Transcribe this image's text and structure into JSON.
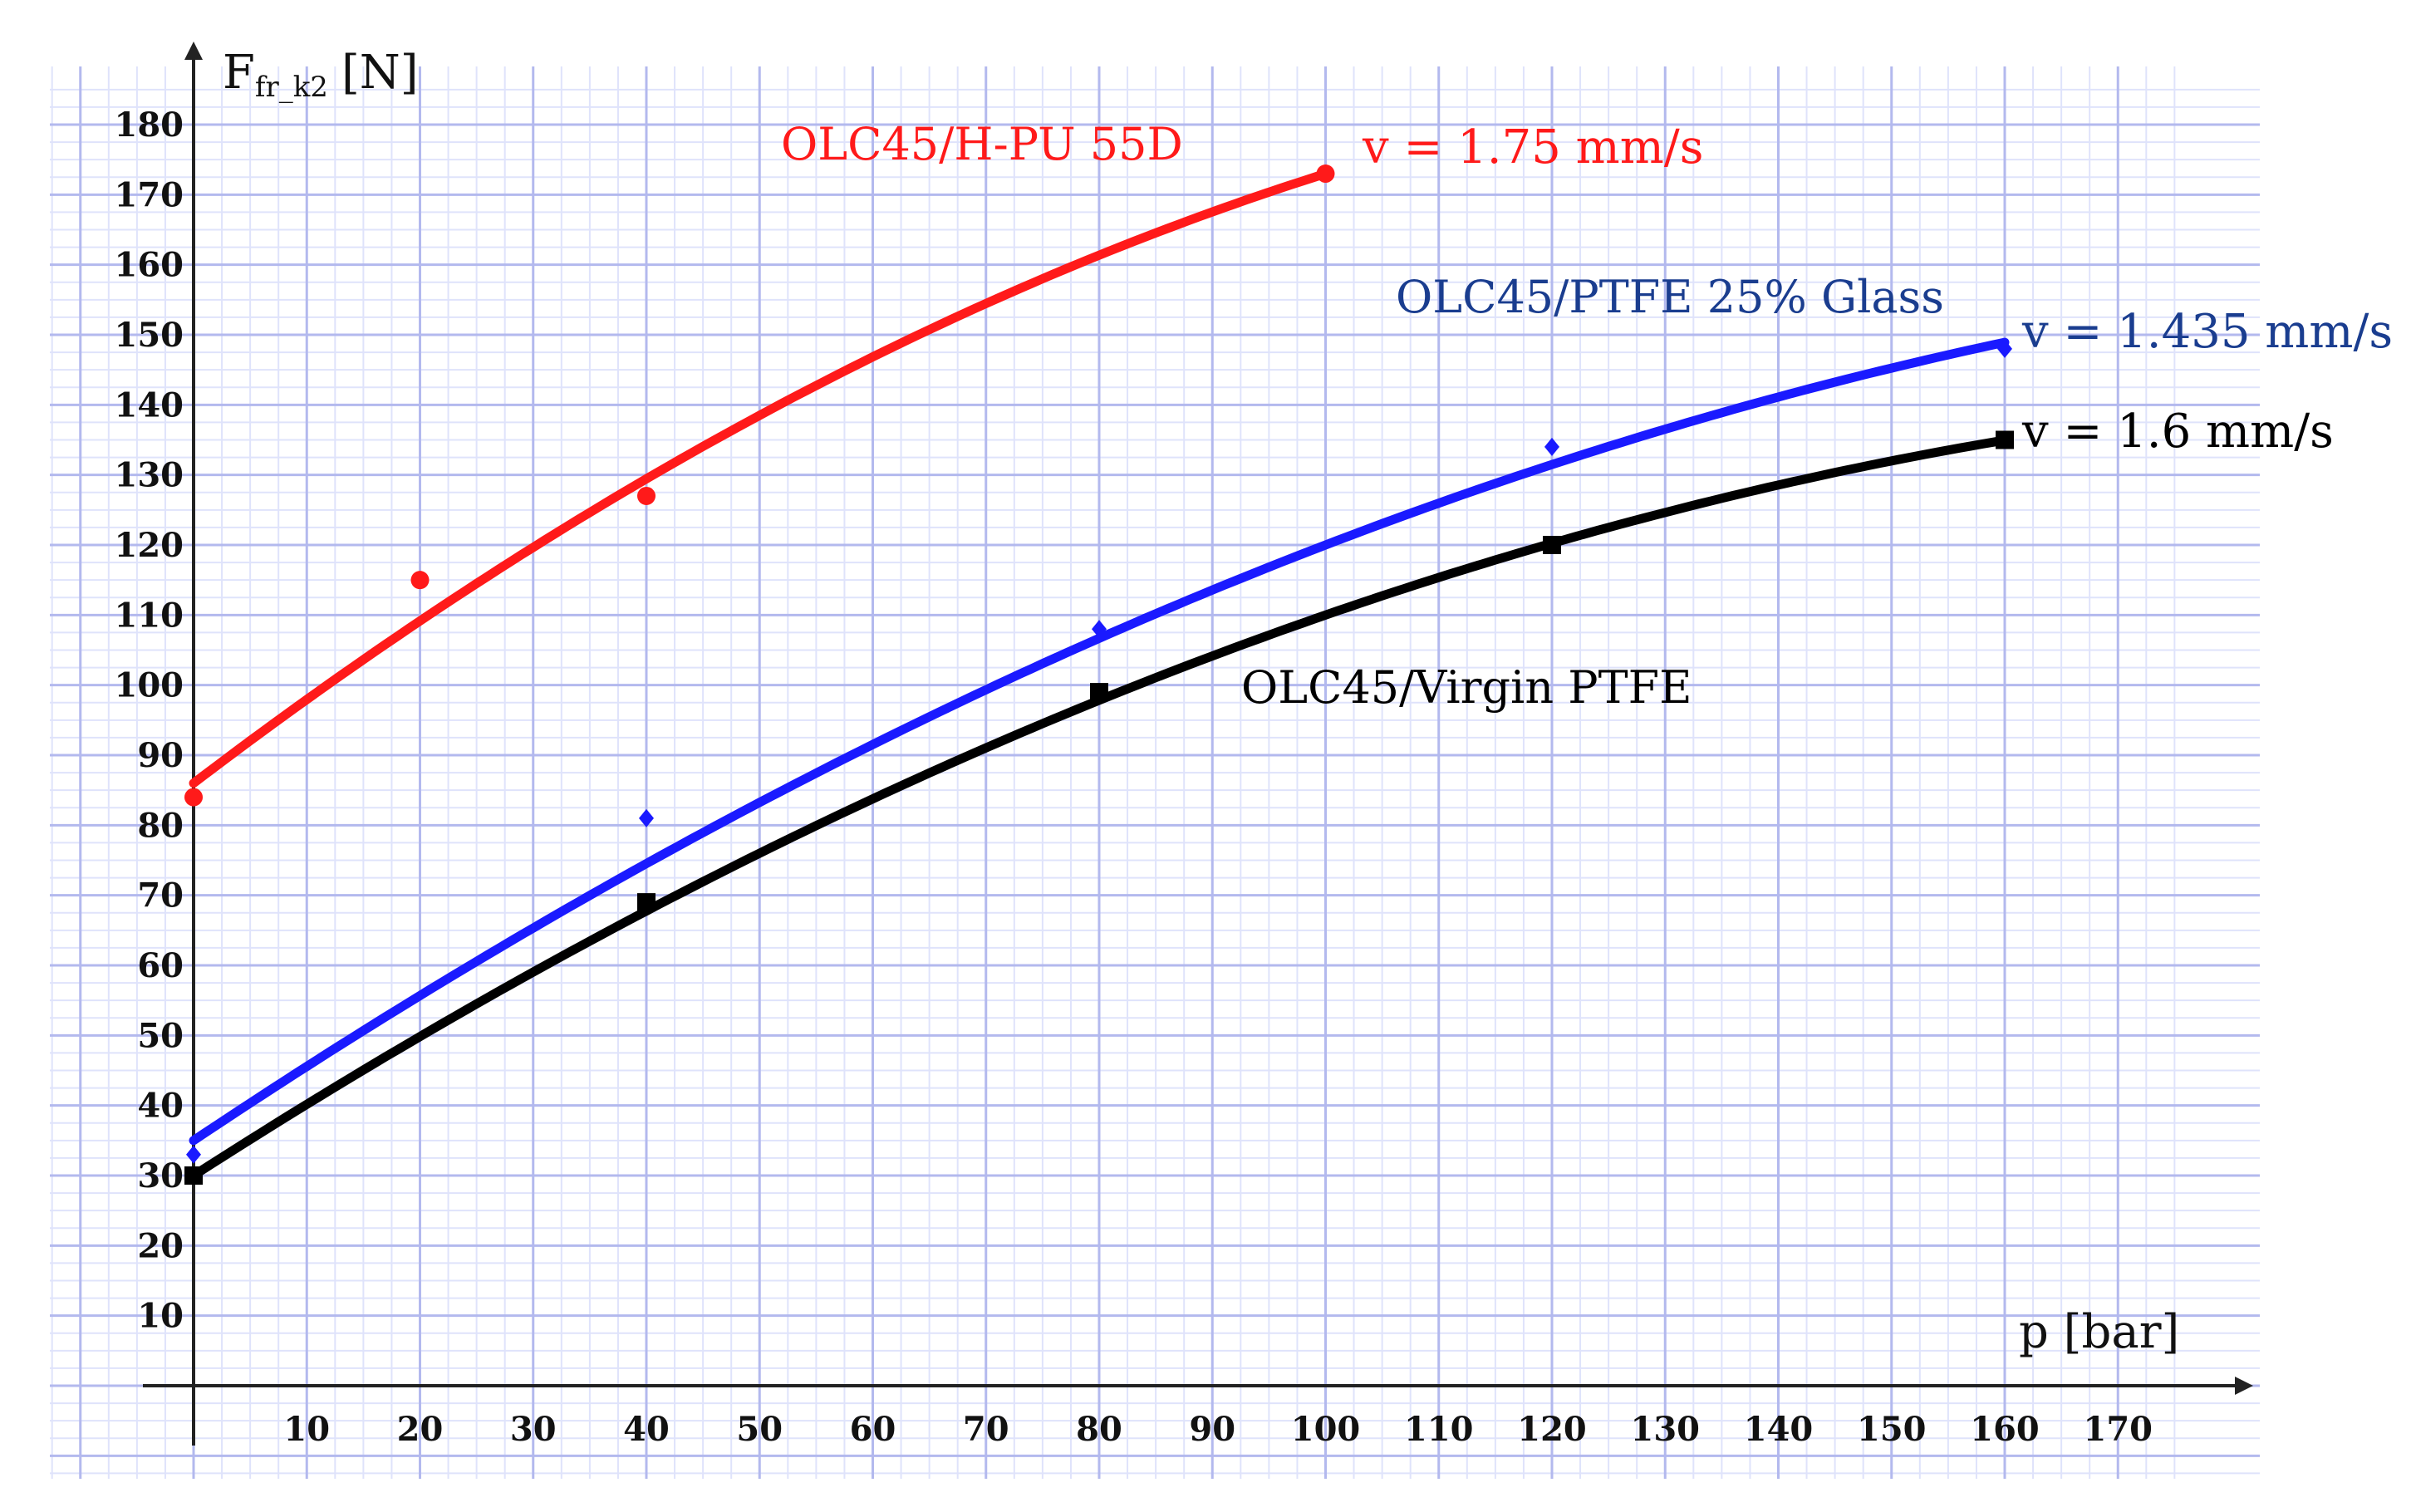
{
  "chart_data": {
    "type": "line",
    "ylabel_main": "F",
    "ylabel_sub": "fr_k2",
    "ylabel_unit": "[N]",
    "xlabel": "p [bar]",
    "xlim": [
      0,
      180
    ],
    "ylim": [
      0,
      185
    ],
    "x_ticks": [
      10,
      20,
      30,
      40,
      50,
      60,
      70,
      80,
      90,
      100,
      110,
      120,
      130,
      140,
      150,
      160,
      170
    ],
    "y_ticks": [
      10,
      20,
      30,
      40,
      50,
      60,
      70,
      80,
      90,
      100,
      110,
      120,
      130,
      140,
      150,
      160,
      170,
      180
    ],
    "grid": true,
    "series": [
      {
        "name": "OLC45/H-PU 55D",
        "label": "OLC45/H-PU 55D",
        "speed_label": "v = 1.75 mm/s",
        "color": "#ff1a1a",
        "marker": "circle",
        "points": [
          {
            "x": 0,
            "y": 84
          },
          {
            "x": 20,
            "y": 115
          },
          {
            "x": 40,
            "y": 127
          },
          {
            "x": 100,
            "y": 173
          }
        ],
        "fit": {
          "a": 86,
          "b": 1.23,
          "c": -0.0036,
          "x_end": 100
        }
      },
      {
        "name": "OLC45/PTFE 25% Glass",
        "label": "OLC45/PTFE 25% Glass",
        "speed_label": "v = 1.435 mm/s",
        "color": "#1a1aff",
        "marker": "diamond",
        "points": [
          {
            "x": 0,
            "y": 33
          },
          {
            "x": 40,
            "y": 81
          },
          {
            "x": 80,
            "y": 108
          },
          {
            "x": 120,
            "y": 134
          },
          {
            "x": 160,
            "y": 148
          }
        ],
        "fit": {
          "a": 35,
          "b": 1.08,
          "c": -0.0023,
          "x_end": 160
        }
      },
      {
        "name": "OLC45/Virgin PTFE",
        "label": "OLC45/Virgin PTFE",
        "speed_label": "v = 1.6 mm/s",
        "color": "#000000",
        "marker": "square",
        "points": [
          {
            "x": 0,
            "y": 30
          },
          {
            "x": 40,
            "y": 69
          },
          {
            "x": 80,
            "y": 99
          },
          {
            "x": 120,
            "y": 120
          },
          {
            "x": 160,
            "y": 135
          }
        ],
        "fit": {
          "a": 30,
          "b": 1.04,
          "c": -0.0024,
          "x_end": 160
        }
      }
    ]
  }
}
